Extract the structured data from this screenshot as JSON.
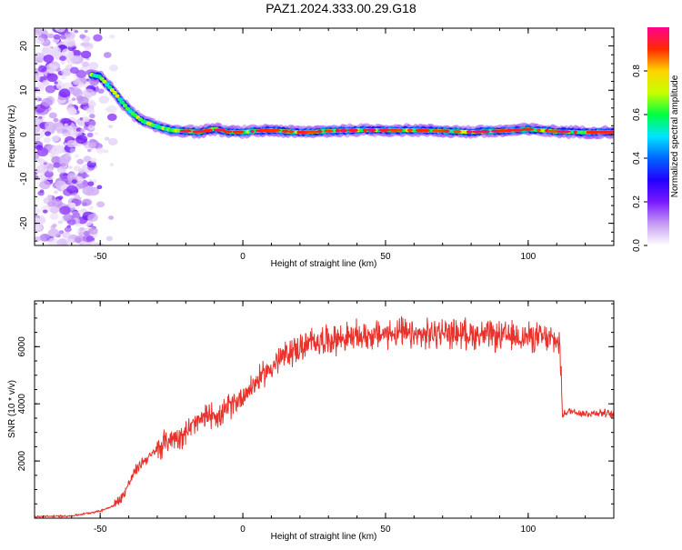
{
  "figure": {
    "title": "PAZ1.2024.333.00.29.G18"
  },
  "colors": {
    "snr_line": "#e8322b",
    "axis": "#000000",
    "colormap_stops": [
      "#ffffff",
      "#c59bf2",
      "#7a19ff",
      "#2200ff",
      "#0066ff",
      "#00e5ff",
      "#00ff40",
      "#c8ff00",
      "#ffd400",
      "#ff2a00",
      "#ff0090"
    ]
  },
  "chart_data": [
    {
      "type": "heatmap",
      "name": "spectrogram",
      "title": "",
      "xlabel": "Height of straight line (km)",
      "ylabel": "Frequency (Hz)",
      "xlim": [
        -73,
        130
      ],
      "ylim": [
        -25,
        24
      ],
      "x_ticks": [
        "-50",
        "0",
        "50",
        "100"
      ],
      "y_ticks": [
        "20",
        "10",
        "0",
        "-10",
        "-20"
      ],
      "grid": false,
      "colorbar": {
        "label": "Normalized spectral amplitude",
        "range": [
          0.0,
          1.0
        ],
        "ticks": [
          "0.0",
          "0.2",
          "0.4",
          "0.6",
          "0.8"
        ]
      },
      "ridge": {
        "x": [
          -53,
          -50,
          -45,
          -40,
          -35,
          -30,
          -25,
          -20,
          -15,
          -10,
          -5,
          0,
          10,
          20,
          30,
          40,
          50,
          60,
          70,
          80,
          90,
          100,
          110,
          120,
          130
        ],
        "y": [
          13.5,
          13.0,
          9.5,
          5.5,
          3.0,
          1.8,
          1.0,
          0.8,
          0.6,
          1.3,
          0.6,
          0.6,
          1.0,
          0.5,
          0.8,
          1.0,
          1.0,
          1.0,
          0.8,
          0.6,
          0.8,
          1.2,
          0.7,
          0.5,
          0.6
        ]
      },
      "noise_region_x": [
        -73,
        -45
      ]
    },
    {
      "type": "line",
      "name": "snr",
      "title": "",
      "xlabel": "Height of straight line (km)",
      "ylabel": "SNR (10 * v/v)",
      "xlim": [
        -73,
        130
      ],
      "ylim": [
        0,
        7600
      ],
      "x_ticks": [
        "-50",
        "0",
        "50",
        "100"
      ],
      "y_ticks": [
        "2000",
        "4000",
        "6000"
      ],
      "grid": false,
      "series": [
        {
          "x": [
            -73,
            -60,
            -50,
            -45,
            -42,
            -40,
            -38,
            -35,
            -32,
            -30,
            -28,
            -25,
            -22,
            -20,
            -18,
            -15,
            -12,
            -10,
            -8,
            -5,
            -2,
            0,
            3,
            6,
            10,
            15,
            18,
            22,
            25,
            30,
            40,
            50,
            55,
            60,
            70,
            80,
            90,
            100,
            105,
            110,
            111,
            112,
            115,
            120,
            125,
            130
          ],
          "y": [
            50,
            80,
            250,
            450,
            800,
            1200,
            1600,
            2000,
            2200,
            2400,
            2600,
            2800,
            2900,
            3000,
            3200,
            3400,
            3600,
            3700,
            3500,
            3900,
            4100,
            4300,
            4600,
            4900,
            5300,
            5700,
            5900,
            6000,
            6200,
            6250,
            6350,
            6450,
            6500,
            6350,
            6500,
            6450,
            6350,
            6350,
            6300,
            6200,
            6150,
            3650,
            3750,
            3650,
            3700,
            3600
          ]
        }
      ]
    }
  ]
}
